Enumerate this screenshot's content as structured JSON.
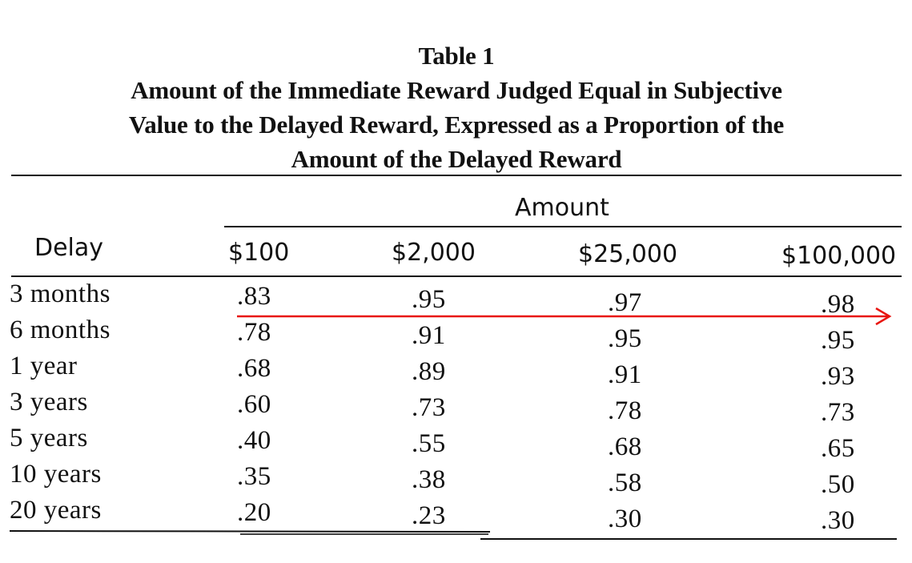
{
  "table": {
    "caption": {
      "number": "Table 1",
      "lines": [
        "Amount of the Immediate Reward Judged Equal in Subjective",
        "Value to the Delayed Reward, Expressed as a Proportion of the",
        "Amount of the Delayed Reward"
      ]
    },
    "spanner_header": "Amount",
    "row_header": "Delay",
    "columns": [
      "$100",
      "$2,000",
      "$25,000",
      "$100,000"
    ],
    "rows": [
      {
        "delay": "3 months",
        "values": [
          ".83",
          ".95",
          ".97",
          ".98"
        ]
      },
      {
        "delay": "6 months",
        "values": [
          ".78",
          ".91",
          ".95",
          ".95"
        ]
      },
      {
        "delay": "1 year",
        "values": [
          ".68",
          ".89",
          ".91",
          ".93"
        ]
      },
      {
        "delay": "3 years",
        "values": [
          ".60",
          ".73",
          ".78",
          ".73"
        ]
      },
      {
        "delay": "5 years",
        "values": [
          ".40",
          ".55",
          ".68",
          ".65"
        ]
      },
      {
        "delay": "10 years",
        "values": [
          ".35",
          ".38",
          ".58",
          ".50"
        ]
      },
      {
        "delay": "20 years",
        "values": [
          ".20",
          ".23",
          ".30",
          ".30"
        ]
      }
    ]
  },
  "annotation": {
    "arrow_color": "#e8150f"
  }
}
